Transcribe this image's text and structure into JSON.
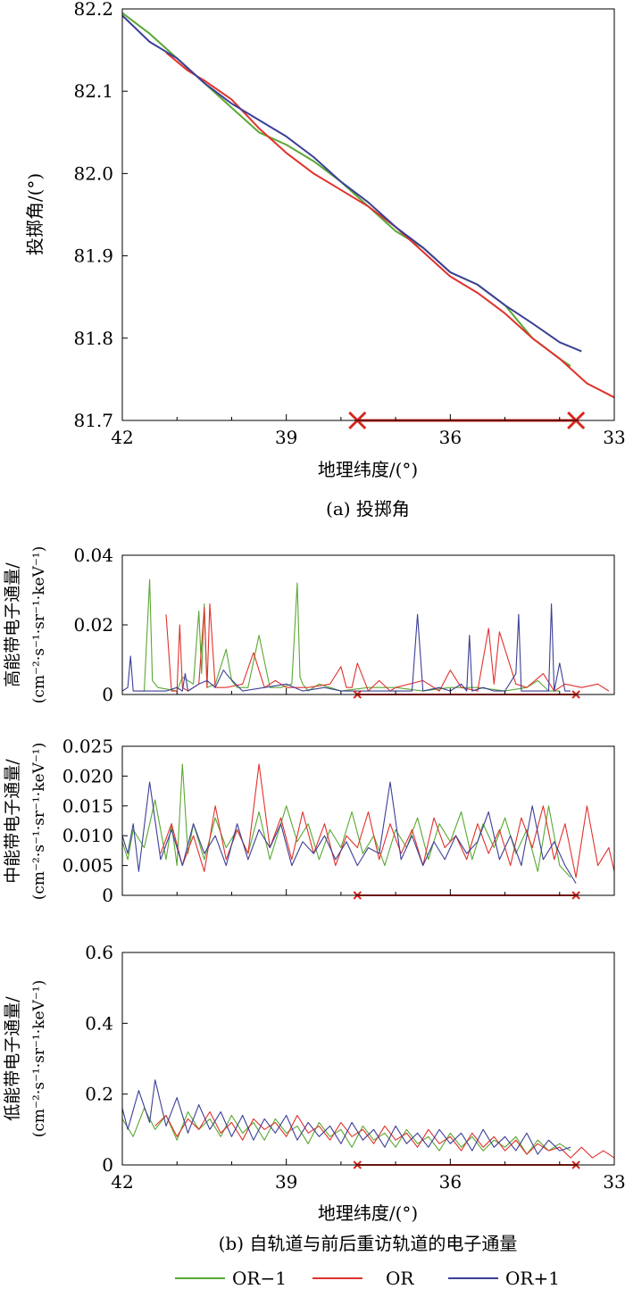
{
  "chart_data": [
    {
      "type": "line",
      "id": "pitch",
      "ylabel": "投掷角/(°)",
      "xlabel": "地理纬度/(°)",
      "caption": "(a) 投掷角",
      "xlim": [
        42,
        33
      ],
      "ylim": [
        81.7,
        82.2
      ],
      "xticks": [
        "42",
        "39",
        "36",
        "33"
      ],
      "yticks": [
        "81.7",
        "81.8",
        "81.9",
        "82.0",
        "82.1",
        "82.2"
      ],
      "marker_range": [
        37.7,
        33.7
      ],
      "series": [
        {
          "name": "OR-1",
          "color": "#5aa832",
          "x": [
            42.0,
            41.5,
            41.0,
            40.5,
            40.0,
            39.5,
            39.0,
            38.5,
            38.0,
            37.5,
            37.0,
            36.5,
            36.0,
            35.5,
            35.0,
            34.5,
            34.0,
            33.8
          ],
          "y": [
            82.195,
            82.17,
            82.14,
            82.11,
            82.08,
            82.05,
            82.035,
            82.015,
            81.99,
            81.96,
            81.93,
            81.91,
            81.88,
            81.865,
            81.84,
            81.8,
            81.775,
            81.766
          ]
        },
        {
          "name": "OR",
          "color": "#e0322d",
          "x": [
            41.2,
            40.8,
            40.5,
            40.0,
            39.5,
            39.0,
            38.5,
            38.0,
            37.5,
            37.0,
            36.5,
            36.0,
            35.5,
            35.0,
            34.5,
            34.0,
            33.5,
            33.0
          ],
          "y": [
            82.147,
            82.125,
            82.113,
            82.09,
            82.055,
            82.025,
            82.0,
            81.98,
            81.96,
            81.935,
            81.905,
            81.875,
            81.855,
            81.83,
            81.8,
            81.775,
            81.745,
            81.728
          ]
        },
        {
          "name": "OR+1",
          "color": "#3c3f96",
          "x": [
            42.0,
            41.5,
            41.0,
            40.5,
            40.0,
            39.5,
            39.0,
            38.5,
            38.0,
            37.5,
            37.0,
            36.5,
            36.0,
            35.5,
            35.0,
            34.5,
            34.0,
            33.6
          ],
          "y": [
            82.192,
            82.16,
            82.14,
            82.11,
            82.085,
            82.065,
            82.045,
            82.02,
            81.99,
            81.965,
            81.935,
            81.91,
            81.88,
            81.865,
            81.84,
            81.818,
            81.795,
            81.784
          ]
        }
      ]
    },
    {
      "type": "line",
      "id": "high",
      "ylabel": [
        "高能带电子通量/",
        "(cm⁻²·s⁻¹·sr⁻¹·keV⁻¹)"
      ],
      "xlim": [
        42,
        33
      ],
      "ylim": [
        0,
        0.04
      ],
      "yticks": [
        "0",
        "0.02",
        "0.04"
      ],
      "marker_range": [
        37.7,
        33.7
      ],
      "series": [
        {
          "name": "OR-1",
          "color": "#5aa832",
          "x": [
            41.7,
            41.6,
            41.5,
            41.45,
            41.35,
            41.0,
            40.9,
            40.7,
            40.6,
            40.55,
            40.5,
            40.45,
            40.3,
            40.1,
            40.0,
            39.9,
            39.7,
            39.5,
            39.3,
            39.1,
            38.9,
            38.8,
            38.75,
            38.7,
            38.6,
            38.4,
            38.0,
            37.5,
            37.0,
            36.5,
            36.0,
            35.5,
            35.0,
            34.6,
            34.4,
            34.2,
            34.0
          ],
          "y": [
            0.001,
            0.001,
            0.033,
            0.004,
            0.002,
            0.001,
            0.005,
            0.003,
            0.024,
            0.006,
            0.026,
            0.002,
            0.003,
            0.013,
            0.004,
            0.002,
            0.002,
            0.017,
            0.002,
            0.002,
            0.003,
            0.032,
            0.005,
            0.003,
            0.001,
            0.003,
            0.001,
            0.002,
            0.002,
            0.001,
            0.002,
            0.002,
            0.001,
            0.002,
            0.004,
            0.001,
            0.001
          ]
        },
        {
          "name": "OR",
          "color": "#e0322d",
          "x": [
            41.2,
            41.1,
            41.0,
            40.95,
            40.9,
            40.8,
            40.6,
            40.5,
            40.45,
            40.4,
            40.3,
            40.1,
            39.8,
            39.6,
            39.4,
            39.2,
            39.0,
            38.6,
            38.2,
            38.0,
            37.9,
            37.8,
            37.7,
            37.5,
            37.3,
            37.1,
            37.0,
            36.5,
            36.2,
            36.0,
            35.8,
            35.5,
            35.3,
            35.2,
            35.1,
            34.8,
            34.6,
            34.3,
            34.1,
            33.9,
            33.6,
            33.3,
            33.1
          ],
          "y": [
            0.023,
            0.001,
            0.001,
            0.02,
            0.002,
            0.001,
            0.003,
            0.025,
            0.002,
            0.026,
            0.002,
            0.002,
            0.003,
            0.012,
            0.002,
            0.004,
            0.002,
            0.002,
            0.003,
            0.008,
            0.002,
            0.002,
            0.009,
            0.001,
            0.004,
            0.001,
            0.002,
            0.004,
            0.001,
            0.007,
            0.002,
            0.001,
            0.019,
            0.003,
            0.018,
            0.003,
            0.002,
            0.006,
            0.001,
            0.003,
            0.002,
            0.003,
            0.001
          ]
        },
        {
          "name": "OR+1",
          "color": "#3c3f96",
          "x": [
            42.0,
            41.9,
            41.85,
            41.8,
            41.4,
            41.2,
            41.0,
            40.9,
            40.85,
            40.8,
            40.6,
            40.45,
            40.3,
            40.15,
            40.05,
            39.8,
            39.4,
            39.0,
            38.7,
            38.3,
            38.0,
            37.5,
            37.0,
            36.7,
            36.6,
            36.5,
            36.2,
            36.0,
            35.8,
            35.7,
            35.65,
            35.6,
            35.4,
            35.2,
            35.0,
            34.8,
            34.75,
            34.7,
            34.5,
            34.2,
            34.15,
            34.1,
            34.0,
            33.9,
            33.8
          ],
          "y": [
            0.001,
            0.002,
            0.011,
            0.001,
            0.001,
            0.001,
            0.002,
            0.001,
            0.006,
            0.001,
            0.003,
            0.004,
            0.002,
            0.007,
            0.005,
            0.001,
            0.002,
            0.003,
            0.001,
            0.002,
            0.001,
            0.001,
            0.001,
            0.001,
            0.023,
            0.001,
            0.002,
            0.001,
            0.003,
            0.001,
            0.017,
            0.001,
            0.002,
            0.001,
            0.001,
            0.006,
            0.023,
            0.001,
            0.001,
            0.001,
            0.026,
            0.001,
            0.009,
            0.001,
            0.001
          ]
        }
      ]
    },
    {
      "type": "line",
      "id": "mid",
      "ylabel": [
        "中能带电子通量/",
        "(cm⁻²·s⁻¹·sr⁻¹·keV⁻¹)"
      ],
      "xlim": [
        42,
        33
      ],
      "ylim": [
        0,
        0.025
      ],
      "yticks": [
        "0",
        "0.005",
        "0.010",
        "0.015",
        "0.020",
        "0.025"
      ],
      "marker_range": [
        37.7,
        33.7
      ],
      "series": [
        {
          "name": "OR-1",
          "color": "#5aa832",
          "x": [
            42.0,
            41.9,
            41.8,
            41.6,
            41.4,
            41.2,
            41.1,
            41.0,
            40.9,
            40.8,
            40.7,
            40.5,
            40.3,
            40.1,
            39.9,
            39.7,
            39.5,
            39.3,
            39.0,
            38.8,
            38.6,
            38.4,
            38.2,
            38.0,
            37.8,
            37.6,
            37.4,
            37.2,
            37.0,
            36.8,
            36.6,
            36.4,
            36.2,
            36.0,
            35.8,
            35.6,
            35.4,
            35.2,
            35.0,
            34.8,
            34.6,
            34.4,
            34.2,
            34.0,
            33.8
          ],
          "y": [
            0.009,
            0.006,
            0.011,
            0.008,
            0.016,
            0.006,
            0.012,
            0.005,
            0.022,
            0.007,
            0.012,
            0.006,
            0.013,
            0.008,
            0.011,
            0.007,
            0.014,
            0.006,
            0.015,
            0.009,
            0.012,
            0.006,
            0.011,
            0.008,
            0.014,
            0.007,
            0.01,
            0.005,
            0.011,
            0.008,
            0.013,
            0.006,
            0.012,
            0.009,
            0.014,
            0.006,
            0.012,
            0.008,
            0.013,
            0.007,
            0.011,
            0.004,
            0.015,
            0.005,
            0.003
          ]
        },
        {
          "name": "OR",
          "color": "#e0322d",
          "x": [
            41.3,
            41.1,
            40.9,
            40.7,
            40.5,
            40.3,
            40.1,
            39.9,
            39.7,
            39.5,
            39.3,
            39.1,
            38.9,
            38.7,
            38.5,
            38.3,
            38.1,
            37.9,
            37.7,
            37.5,
            37.3,
            37.1,
            36.9,
            36.7,
            36.5,
            36.3,
            36.1,
            35.9,
            35.7,
            35.5,
            35.3,
            35.1,
            34.9,
            34.7,
            34.5,
            34.3,
            34.1,
            33.9,
            33.7,
            33.5,
            33.3,
            33.1,
            33.0
          ],
          "y": [
            0.007,
            0.012,
            0.005,
            0.01,
            0.004,
            0.015,
            0.006,
            0.011,
            0.007,
            0.022,
            0.008,
            0.013,
            0.006,
            0.014,
            0.007,
            0.012,
            0.005,
            0.01,
            0.008,
            0.014,
            0.006,
            0.012,
            0.007,
            0.011,
            0.005,
            0.013,
            0.008,
            0.01,
            0.006,
            0.012,
            0.007,
            0.011,
            0.005,
            0.013,
            0.008,
            0.015,
            0.006,
            0.012,
            0.003,
            0.015,
            0.005,
            0.008,
            0.004
          ]
        },
        {
          "name": "OR+1",
          "color": "#3c3f96",
          "x": [
            42.0,
            41.9,
            41.8,
            41.7,
            41.5,
            41.3,
            41.1,
            40.9,
            40.7,
            40.5,
            40.3,
            40.1,
            39.9,
            39.7,
            39.5,
            39.3,
            39.1,
            38.9,
            38.7,
            38.5,
            38.3,
            38.1,
            37.9,
            37.7,
            37.5,
            37.3,
            37.1,
            36.9,
            36.7,
            36.5,
            36.3,
            36.1,
            35.9,
            35.7,
            35.5,
            35.3,
            35.1,
            34.9,
            34.7,
            34.5,
            34.3,
            34.1,
            33.9,
            33.7
          ],
          "y": [
            0.01,
            0.007,
            0.012,
            0.004,
            0.019,
            0.006,
            0.011,
            0.005,
            0.012,
            0.007,
            0.01,
            0.005,
            0.012,
            0.006,
            0.011,
            0.008,
            0.012,
            0.005,
            0.009,
            0.007,
            0.01,
            0.006,
            0.009,
            0.005,
            0.008,
            0.007,
            0.019,
            0.006,
            0.01,
            0.005,
            0.009,
            0.006,
            0.01,
            0.007,
            0.009,
            0.014,
            0.006,
            0.01,
            0.005,
            0.015,
            0.006,
            0.009,
            0.005,
            0.002
          ]
        }
      ]
    },
    {
      "type": "line",
      "id": "low",
      "ylabel": [
        "低能带电子通量/",
        "(cm⁻²·s⁻¹·sr⁻¹·keV⁻¹)"
      ],
      "xlabel": "地理纬度/(°)",
      "xlim": [
        42,
        33
      ],
      "ylim": [
        0,
        0.6
      ],
      "xticks": [
        "42",
        "39",
        "36",
        "33"
      ],
      "yticks": [
        "0",
        "0.2",
        "0.4",
        "0.6"
      ],
      "marker_range": [
        37.7,
        33.7
      ],
      "series": [
        {
          "name": "OR-1",
          "color": "#5aa832",
          "x": [
            42.0,
            41.8,
            41.6,
            41.4,
            41.2,
            41.0,
            40.8,
            40.6,
            40.4,
            40.2,
            40.0,
            39.8,
            39.6,
            39.4,
            39.2,
            39.0,
            38.8,
            38.6,
            38.4,
            38.2,
            38.0,
            37.8,
            37.6,
            37.4,
            37.2,
            37.0,
            36.8,
            36.6,
            36.4,
            36.2,
            36.0,
            35.8,
            35.6,
            35.4,
            35.2,
            35.0,
            34.8,
            34.6,
            34.4,
            34.2,
            34.0,
            33.8
          ],
          "y": [
            0.13,
            0.08,
            0.16,
            0.1,
            0.14,
            0.07,
            0.15,
            0.1,
            0.13,
            0.08,
            0.14,
            0.09,
            0.12,
            0.07,
            0.13,
            0.09,
            0.11,
            0.06,
            0.12,
            0.08,
            0.1,
            0.05,
            0.11,
            0.07,
            0.09,
            0.05,
            0.1,
            0.06,
            0.08,
            0.04,
            0.09,
            0.05,
            0.08,
            0.04,
            0.07,
            0.05,
            0.08,
            0.03,
            0.07,
            0.04,
            0.06,
            0.04
          ]
        },
        {
          "name": "OR",
          "color": "#e0322d",
          "x": [
            41.4,
            41.2,
            41.0,
            40.8,
            40.6,
            40.4,
            40.2,
            40.0,
            39.8,
            39.6,
            39.4,
            39.2,
            39.0,
            38.8,
            38.6,
            38.4,
            38.2,
            38.0,
            37.8,
            37.6,
            37.4,
            37.2,
            37.0,
            36.8,
            36.6,
            36.4,
            36.2,
            36.0,
            35.8,
            35.6,
            35.4,
            35.2,
            35.0,
            34.8,
            34.6,
            34.4,
            34.2,
            34.0,
            33.8,
            33.6,
            33.4,
            33.2,
            33.0
          ],
          "y": [
            0.11,
            0.14,
            0.08,
            0.13,
            0.1,
            0.15,
            0.09,
            0.12,
            0.07,
            0.13,
            0.1,
            0.12,
            0.08,
            0.14,
            0.09,
            0.11,
            0.07,
            0.12,
            0.08,
            0.1,
            0.06,
            0.11,
            0.07,
            0.09,
            0.05,
            0.1,
            0.06,
            0.08,
            0.04,
            0.09,
            0.05,
            0.08,
            0.04,
            0.07,
            0.03,
            0.06,
            0.04,
            0.05,
            0.02,
            0.05,
            0.02,
            0.04,
            0.02
          ]
        },
        {
          "name": "OR+1",
          "color": "#3c3f96",
          "x": [
            42.0,
            41.9,
            41.7,
            41.5,
            41.4,
            41.2,
            41.0,
            40.8,
            40.6,
            40.4,
            40.2,
            40.0,
            39.8,
            39.6,
            39.4,
            39.2,
            39.0,
            38.8,
            38.6,
            38.4,
            38.2,
            38.0,
            37.8,
            37.6,
            37.4,
            37.2,
            37.0,
            36.8,
            36.6,
            36.4,
            36.2,
            36.0,
            35.8,
            35.6,
            35.4,
            35.2,
            35.0,
            34.8,
            34.6,
            34.4,
            34.2,
            34.0,
            33.8
          ],
          "y": [
            0.16,
            0.1,
            0.21,
            0.12,
            0.24,
            0.11,
            0.19,
            0.09,
            0.17,
            0.1,
            0.15,
            0.08,
            0.14,
            0.07,
            0.13,
            0.09,
            0.14,
            0.07,
            0.12,
            0.08,
            0.11,
            0.06,
            0.12,
            0.07,
            0.1,
            0.05,
            0.11,
            0.06,
            0.09,
            0.05,
            0.1,
            0.06,
            0.09,
            0.04,
            0.1,
            0.05,
            0.08,
            0.04,
            0.09,
            0.03,
            0.07,
            0.04,
            0.05
          ]
        }
      ]
    }
  ],
  "caption_b": "(b) 自轨道与前后重访轨道的电子通量",
  "legend": {
    "items": [
      {
        "label": "OR−1",
        "color": "#5aa832"
      },
      {
        "label": "OR",
        "color": "#e0322d"
      },
      {
        "label": "OR+1",
        "color": "#3c3f96"
      }
    ]
  }
}
